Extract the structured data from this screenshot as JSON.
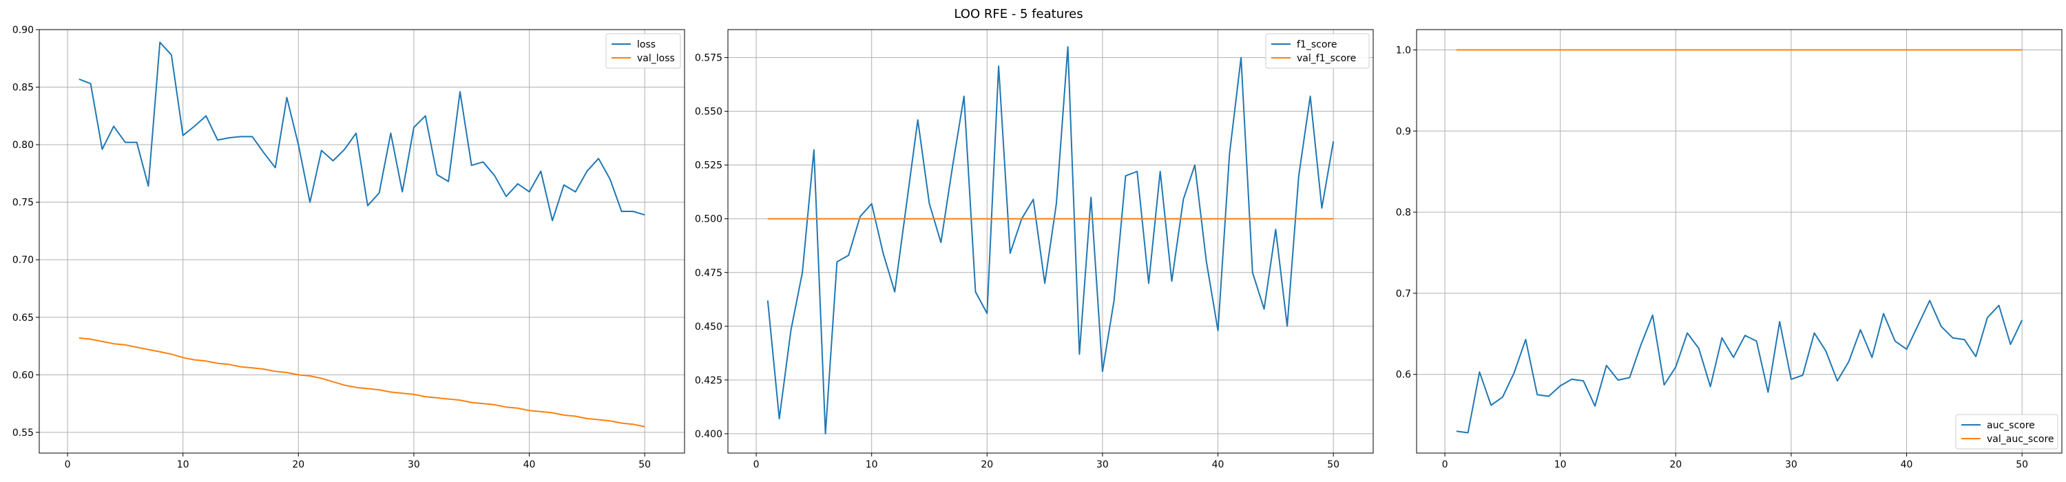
{
  "figure": {
    "title": "LOO RFE - 5 features"
  },
  "colors": {
    "series_1": "#1f77b4",
    "series_2": "#ff7f0e",
    "grid": "#b0b0b0"
  },
  "chart_data": [
    {
      "type": "line",
      "title": "",
      "xlabel": "",
      "ylabel": "",
      "xlim": [
        -2.45,
        53.45
      ],
      "ylim": [
        0.532,
        0.9
      ],
      "xticks": [
        0,
        10,
        20,
        30,
        40,
        50
      ],
      "yticks": [
        0.55,
        0.6,
        0.65,
        0.7,
        0.75,
        0.8,
        0.85,
        0.9
      ],
      "ytick_labels": [
        "0.55",
        "0.60",
        "0.65",
        "0.70",
        "0.75",
        "0.80",
        "0.85",
        "0.90"
      ],
      "grid": true,
      "legend_position": "top-right",
      "x": [
        1,
        2,
        3,
        4,
        5,
        6,
        7,
        8,
        9,
        10,
        11,
        12,
        13,
        14,
        15,
        16,
        17,
        18,
        19,
        20,
        21,
        22,
        23,
        24,
        25,
        26,
        27,
        28,
        29,
        30,
        31,
        32,
        33,
        34,
        35,
        36,
        37,
        38,
        39,
        40,
        41,
        42,
        43,
        44,
        45,
        46,
        47,
        48,
        49,
        50
      ],
      "series": [
        {
          "name": "loss",
          "values": [
            0.857,
            0.853,
            0.796,
            0.816,
            0.802,
            0.802,
            0.764,
            0.889,
            0.878,
            0.808,
            0.816,
            0.825,
            0.804,
            0.806,
            0.807,
            0.807,
            0.793,
            0.78,
            0.841,
            0.8,
            0.75,
            0.795,
            0.786,
            0.796,
            0.81,
            0.747,
            0.758,
            0.81,
            0.759,
            0.815,
            0.825,
            0.774,
            0.768,
            0.846,
            0.782,
            0.785,
            0.773,
            0.755,
            0.766,
            0.759,
            0.777,
            0.734,
            0.765,
            0.759,
            0.777,
            0.788,
            0.77,
            0.742,
            0.742,
            0.739
          ]
        },
        {
          "name": "val_loss",
          "values": [
            0.632,
            0.631,
            0.629,
            0.627,
            0.626,
            0.624,
            0.622,
            0.62,
            0.618,
            0.615,
            0.613,
            0.612,
            0.61,
            0.609,
            0.607,
            0.606,
            0.605,
            0.603,
            0.602,
            0.6,
            0.599,
            0.597,
            0.594,
            0.591,
            0.589,
            0.588,
            0.587,
            0.585,
            0.584,
            0.583,
            0.581,
            0.58,
            0.579,
            0.578,
            0.576,
            0.575,
            0.574,
            0.572,
            0.571,
            0.569,
            0.568,
            0.567,
            0.565,
            0.564,
            0.562,
            0.561,
            0.56,
            0.558,
            0.557,
            0.555
          ]
        }
      ]
    },
    {
      "type": "line",
      "title": "",
      "xlabel": "",
      "ylabel": "",
      "xlim": [
        -2.45,
        53.45
      ],
      "ylim": [
        0.391,
        0.588
      ],
      "xticks": [
        0,
        10,
        20,
        30,
        40,
        50
      ],
      "yticks": [
        0.4,
        0.425,
        0.45,
        0.475,
        0.5,
        0.525,
        0.55,
        0.575
      ],
      "ytick_labels": [
        "0.400",
        "0.425",
        "0.450",
        "0.475",
        "0.500",
        "0.525",
        "0.550",
        "0.575"
      ],
      "grid": true,
      "legend_position": "top-right",
      "x": [
        1,
        2,
        3,
        4,
        5,
        6,
        7,
        8,
        9,
        10,
        11,
        12,
        13,
        14,
        15,
        16,
        17,
        18,
        19,
        20,
        21,
        22,
        23,
        24,
        25,
        26,
        27,
        28,
        29,
        30,
        31,
        32,
        33,
        34,
        35,
        36,
        37,
        38,
        39,
        40,
        41,
        42,
        43,
        44,
        45,
        46,
        47,
        48,
        49,
        50
      ],
      "series": [
        {
          "name": "f1_score",
          "values": [
            0.462,
            0.407,
            0.448,
            0.475,
            0.532,
            0.4,
            0.48,
            0.483,
            0.501,
            0.507,
            0.484,
            0.466,
            0.506,
            0.546,
            0.507,
            0.489,
            0.524,
            0.557,
            0.466,
            0.456,
            0.571,
            0.484,
            0.5,
            0.509,
            0.47,
            0.507,
            0.58,
            0.437,
            0.51,
            0.429,
            0.462,
            0.52,
            0.522,
            0.47,
            0.522,
            0.471,
            0.509,
            0.525,
            0.48,
            0.448,
            0.53,
            0.575,
            0.475,
            0.458,
            0.495,
            0.45,
            0.52,
            0.557,
            0.505,
            0.536
          ]
        },
        {
          "name": "val_f1_score",
          "values": [
            0.5,
            0.5,
            0.5,
            0.5,
            0.5,
            0.5,
            0.5,
            0.5,
            0.5,
            0.5,
            0.5,
            0.5,
            0.5,
            0.5,
            0.5,
            0.5,
            0.5,
            0.5,
            0.5,
            0.5,
            0.5,
            0.5,
            0.5,
            0.5,
            0.5,
            0.5,
            0.5,
            0.5,
            0.5,
            0.5,
            0.5,
            0.5,
            0.5,
            0.5,
            0.5,
            0.5,
            0.5,
            0.5,
            0.5,
            0.5,
            0.5,
            0.5,
            0.5,
            0.5,
            0.5,
            0.5,
            0.5,
            0.5,
            0.5,
            0.5
          ]
        }
      ]
    },
    {
      "type": "line",
      "title": "",
      "xlabel": "",
      "ylabel": "",
      "xlim": [
        -2.45,
        53.45
      ],
      "ylim": [
        0.503,
        1.025
      ],
      "xticks": [
        0,
        10,
        20,
        30,
        40,
        50
      ],
      "yticks": [
        0.6,
        0.7,
        0.8,
        0.9,
        1.0
      ],
      "ytick_labels": [
        "0.6",
        "0.7",
        "0.8",
        "0.9",
        "1.0"
      ],
      "grid": true,
      "legend_position": "bottom-right",
      "x": [
        1,
        2,
        3,
        4,
        5,
        6,
        7,
        8,
        9,
        10,
        11,
        12,
        13,
        14,
        15,
        16,
        17,
        18,
        19,
        20,
        21,
        22,
        23,
        24,
        25,
        26,
        27,
        28,
        29,
        30,
        31,
        32,
        33,
        34,
        35,
        36,
        37,
        38,
        39,
        40,
        41,
        42,
        43,
        44,
        45,
        46,
        47,
        48,
        49,
        50
      ],
      "series": [
        {
          "name": "auc_score",
          "values": [
            0.53,
            0.528,
            0.603,
            0.562,
            0.572,
            0.602,
            0.643,
            0.575,
            0.573,
            0.586,
            0.594,
            0.592,
            0.561,
            0.611,
            0.593,
            0.596,
            0.637,
            0.673,
            0.587,
            0.609,
            0.651,
            0.632,
            0.585,
            0.645,
            0.621,
            0.648,
            0.641,
            0.578,
            0.665,
            0.594,
            0.599,
            0.651,
            0.629,
            0.592,
            0.616,
            0.655,
            0.621,
            0.675,
            0.641,
            0.631,
            0.661,
            0.691,
            0.659,
            0.645,
            0.643,
            0.622,
            0.67,
            0.685,
            0.637,
            0.667
          ]
        },
        {
          "name": "val_auc_score",
          "values": [
            1.0,
            1.0,
            1.0,
            1.0,
            1.0,
            1.0,
            1.0,
            1.0,
            1.0,
            1.0,
            1.0,
            1.0,
            1.0,
            1.0,
            1.0,
            1.0,
            1.0,
            1.0,
            1.0,
            1.0,
            1.0,
            1.0,
            1.0,
            1.0,
            1.0,
            1.0,
            1.0,
            1.0,
            1.0,
            1.0,
            1.0,
            1.0,
            1.0,
            1.0,
            1.0,
            1.0,
            1.0,
            1.0,
            1.0,
            1.0,
            1.0,
            1.0,
            1.0,
            1.0,
            1.0,
            1.0,
            1.0,
            1.0,
            1.0,
            1.0
          ]
        }
      ]
    }
  ]
}
